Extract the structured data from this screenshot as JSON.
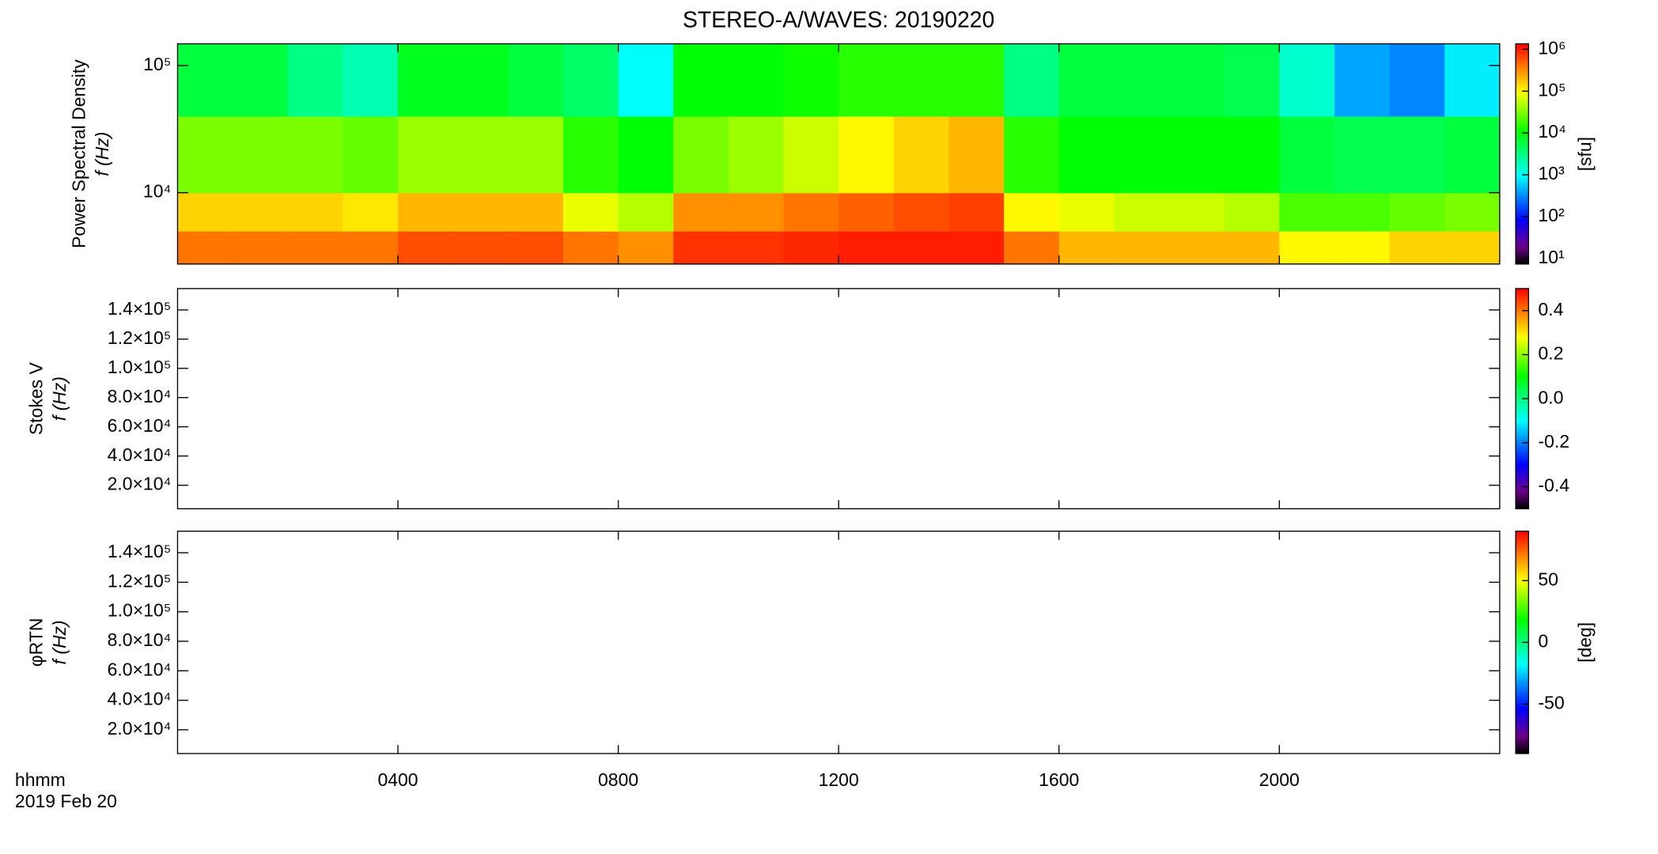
{
  "title": "STEREO-A/WAVES: 20190220",
  "chart_data": [
    {
      "type": "heatmap",
      "ylabel": "Power Spectral Density",
      "ylabel2": "f (Hz)",
      "xlim": [
        0,
        24
      ],
      "xticks": [
        4,
        8,
        12,
        16,
        20
      ],
      "ylim": [
        2750,
        148000
      ],
      "ylog": true,
      "yticks": [
        {
          "value": 10000,
          "label": "10⁴"
        },
        {
          "value": 100000,
          "label": "10⁵"
        }
      ],
      "x": [
        0,
        1,
        2,
        3,
        4,
        5,
        6,
        7,
        8,
        9,
        10,
        11,
        12,
        13,
        14,
        15,
        16,
        17,
        18,
        19,
        20,
        21,
        22,
        23,
        24
      ],
      "y": [
        2750,
        5000,
        10000,
        40000,
        148000
      ],
      "values": [
        [
          400000,
          400000,
          400000,
          400000,
          600000,
          600000,
          600000,
          400000,
          300000,
          800000,
          800000,
          900000,
          1000000,
          1000000,
          1000000,
          400000,
          200000,
          200000,
          200000,
          200000,
          100000,
          100000,
          150000,
          150000
        ],
        [
          150000,
          150000,
          150000,
          120000,
          200000,
          200000,
          200000,
          80000,
          50000,
          300000,
          300000,
          400000,
          500000,
          600000,
          700000,
          100000,
          80000,
          60000,
          60000,
          50000,
          20000,
          20000,
          25000,
          30000
        ],
        [
          30000,
          30000,
          30000,
          25000,
          40000,
          40000,
          40000,
          15000,
          10000,
          30000,
          40000,
          60000,
          100000,
          150000,
          200000,
          15000,
          10000,
          10000,
          10000,
          10000,
          6000,
          5000,
          5000,
          6000
        ],
        [
          6000,
          6000,
          3000,
          2000,
          8000,
          8000,
          6000,
          4000,
          1000,
          10000,
          10000,
          12000,
          15000,
          15000,
          15000,
          3000,
          6000,
          6000,
          6000,
          5000,
          1500,
          400,
          300,
          800
        ]
      ],
      "zlim": [
        7.4,
        1350000
      ],
      "zlog": true,
      "zticks": [
        {
          "value": 10,
          "label": "10¹"
        },
        {
          "value": 100,
          "label": "10²"
        },
        {
          "value": 1000,
          "label": "10³"
        },
        {
          "value": 10000,
          "label": "10⁴"
        },
        {
          "value": 100000,
          "label": "10⁵"
        },
        {
          "value": 1000000,
          "label": "10⁶"
        }
      ],
      "zlabel": "[sfu]"
    },
    {
      "type": "heatmap",
      "ylabel": "Stokes V",
      "ylabel2": "f (Hz)",
      "xlim": [
        0,
        24
      ],
      "xticks": [
        4,
        8,
        12,
        16,
        20
      ],
      "ylim": [
        3900,
        154600
      ],
      "ylog": false,
      "yticks": [
        {
          "value": 20000,
          "label": "2.0×10⁴"
        },
        {
          "value": 40000,
          "label": "4.0×10⁴"
        },
        {
          "value": 60000,
          "label": "6.0×10⁴"
        },
        {
          "value": 80000,
          "label": "8.0×10⁴"
        },
        {
          "value": 100000,
          "label": "1.0×10⁵"
        },
        {
          "value": 120000,
          "label": "1.2×10⁵"
        },
        {
          "value": 140000,
          "label": "1.4×10⁵"
        }
      ],
      "zlim": [
        -0.5,
        0.5
      ],
      "zlog": false,
      "zticks": [
        -0.4,
        -0.2,
        {
          "value": 0,
          "label": "0.0"
        },
        0.2,
        0.4
      ]
    },
    {
      "type": "heatmap",
      "ylabel": "φRTN",
      "ylabel2": "f (Hz)",
      "xlim": [
        0,
        24
      ],
      "xticks": [
        {
          "value": 4,
          "label": "0400"
        },
        {
          "value": 8,
          "label": "0800"
        },
        {
          "value": 12,
          "label": "1200"
        },
        {
          "value": 16,
          "label": "1600"
        },
        {
          "value": 20,
          "label": "2000"
        }
      ],
      "xlabel": "hhmm",
      "xlabel2": "2019 Feb 20",
      "ylim": [
        3900,
        154600
      ],
      "ylog": false,
      "yticks": [
        {
          "value": 20000,
          "label": "2.0×10⁴"
        },
        {
          "value": 40000,
          "label": "4.0×10⁴"
        },
        {
          "value": 60000,
          "label": "6.0×10⁴"
        },
        {
          "value": 80000,
          "label": "8.0×10⁴"
        },
        {
          "value": 100000,
          "label": "1.0×10⁵"
        },
        {
          "value": 120000,
          "label": "1.2×10⁵"
        },
        {
          "value": 140000,
          "label": "1.4×10⁵"
        }
      ],
      "zlim": [
        -90,
        90
      ],
      "zlog": false,
      "zticks": [
        -50,
        0,
        50
      ],
      "zlabel": "[deg]"
    }
  ]
}
